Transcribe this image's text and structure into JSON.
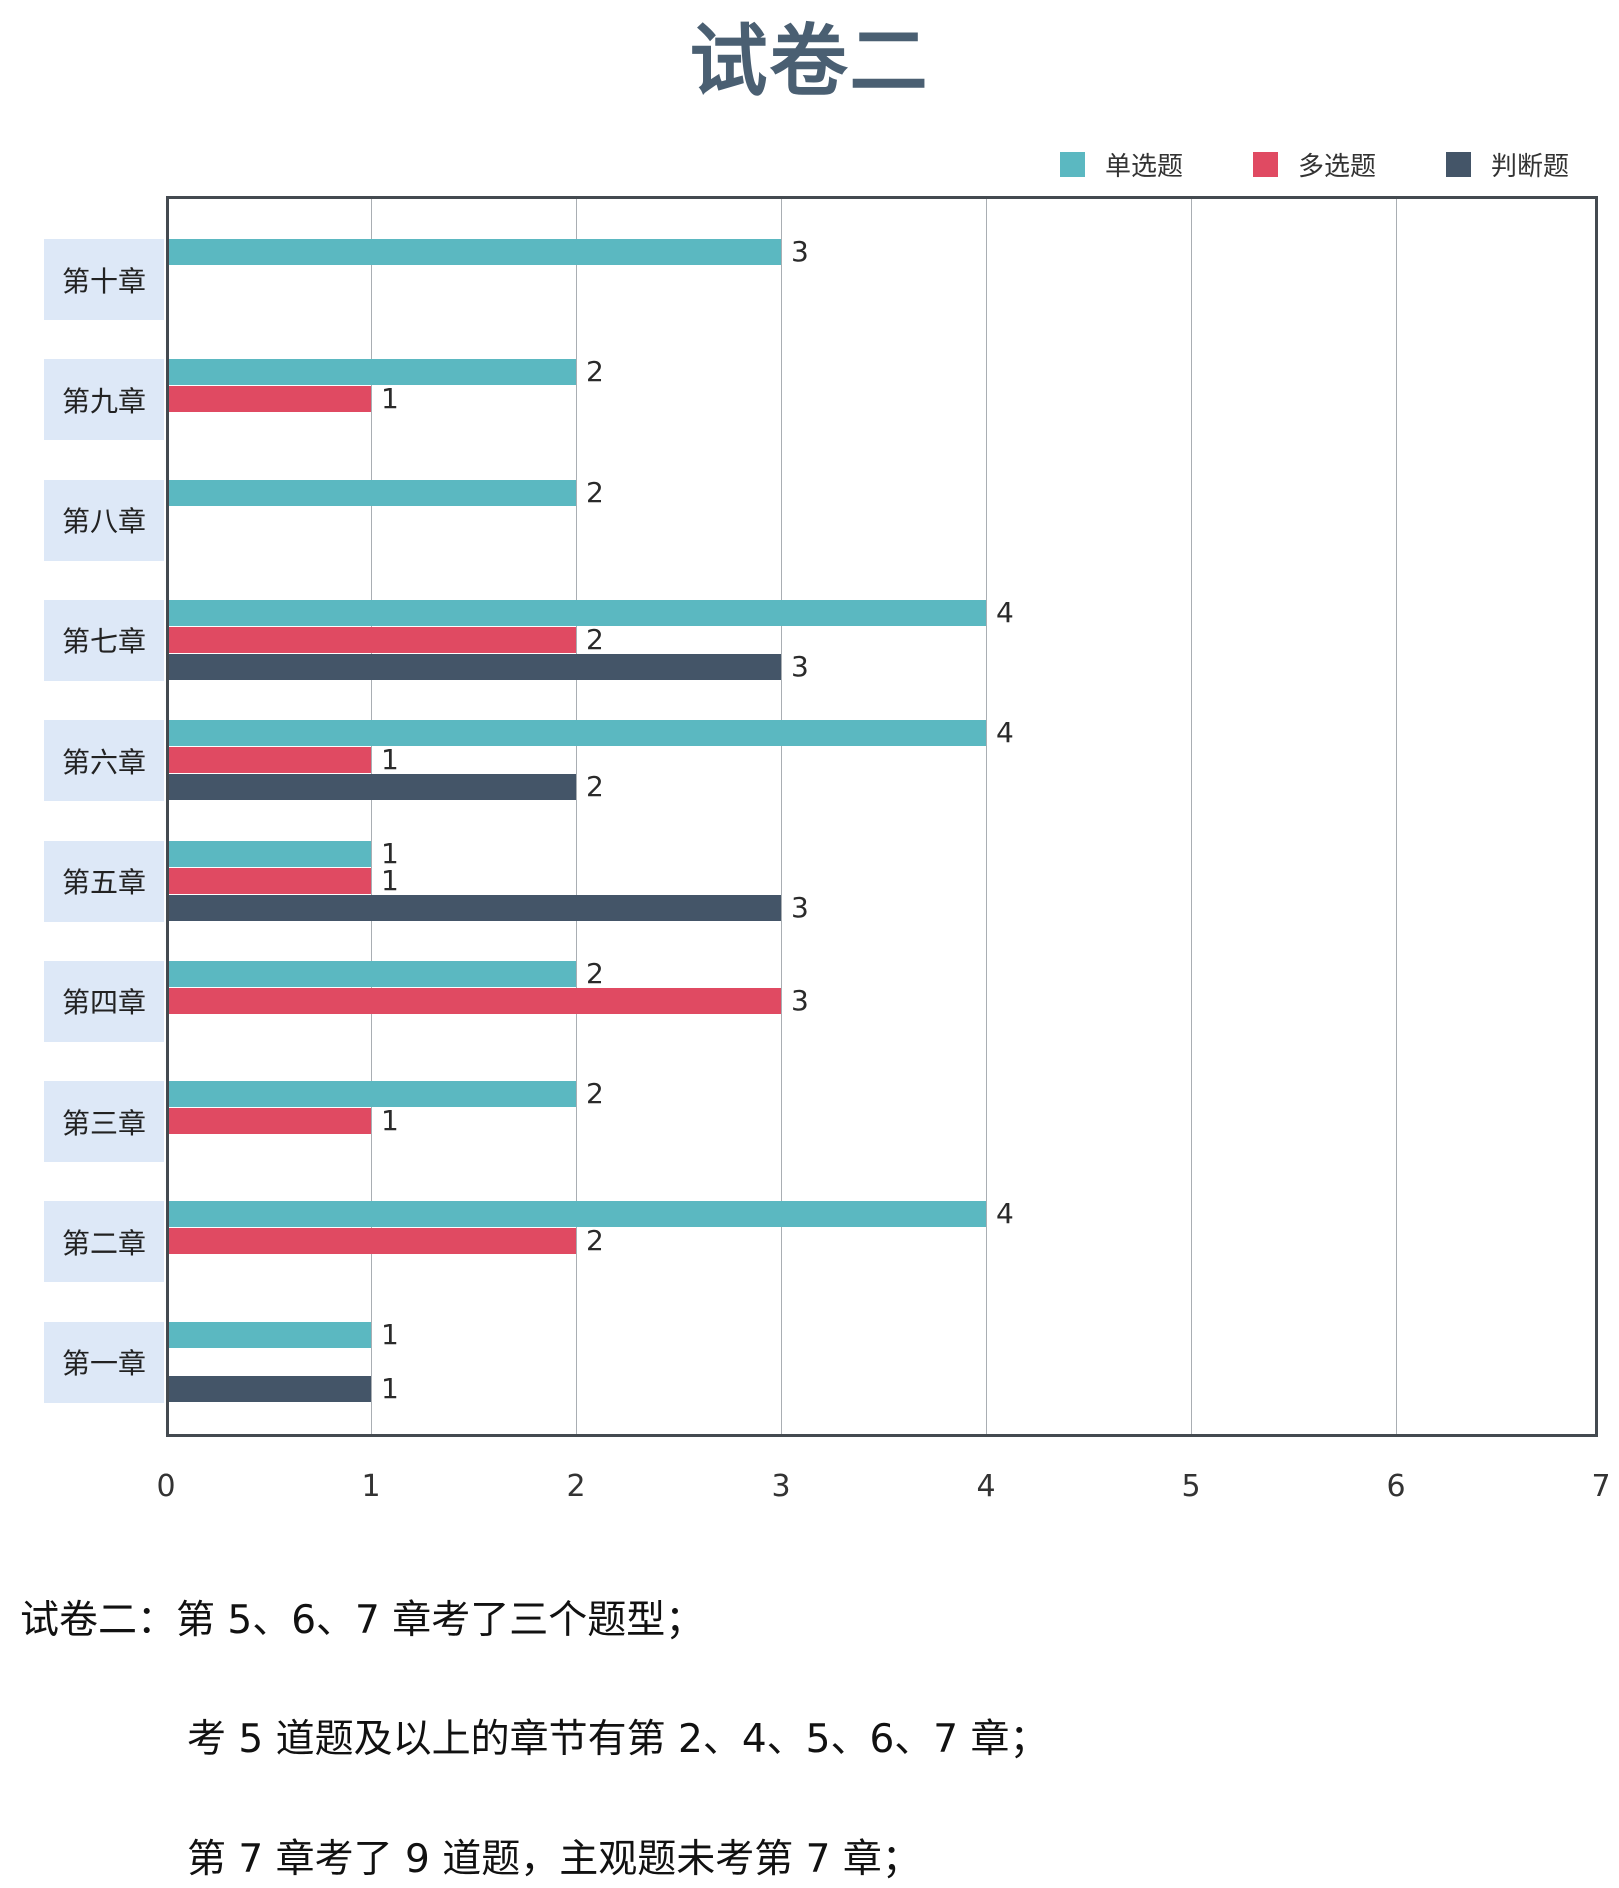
{
  "title": "试卷二",
  "legend": [
    {
      "label": "单选题",
      "color": "#5bb8c1"
    },
    {
      "label": "多选题",
      "color": "#e04a62"
    },
    {
      "label": "判断题",
      "color": "#445568"
    }
  ],
  "chart_data": {
    "type": "bar",
    "orientation": "horizontal",
    "title": "试卷二",
    "xlabel": "",
    "ylabel": "",
    "xlim": [
      0,
      7
    ],
    "x_ticks": [
      "0",
      "1",
      "2",
      "3",
      "4",
      "5",
      "6",
      "7"
    ],
    "grid": true,
    "legend_position": "top-right",
    "categories": [
      "第十章",
      "第九章",
      "第八章",
      "第七章",
      "第六章",
      "第五章",
      "第四章",
      "第三章",
      "第二章",
      "第一章"
    ],
    "series": [
      {
        "name": "单选题",
        "color": "#5bb8c1",
        "values": [
          3,
          2,
          2,
          4,
          4,
          1,
          2,
          2,
          4,
          1
        ]
      },
      {
        "name": "多选题",
        "color": "#e04a62",
        "values": [
          null,
          1,
          null,
          2,
          1,
          1,
          3,
          1,
          2,
          null
        ]
      },
      {
        "name": "判断题",
        "color": "#445568",
        "values": [
          null,
          null,
          null,
          3,
          2,
          3,
          null,
          null,
          null,
          1
        ]
      }
    ]
  },
  "notes": [
    "试卷二：第 5、6、7 章考了三个题型；",
    "考 5 道题及以上的章节有第 2、4、5、6、7 章；",
    "第 7 章考了 9 道题，主观题未考第 7 章；"
  ]
}
